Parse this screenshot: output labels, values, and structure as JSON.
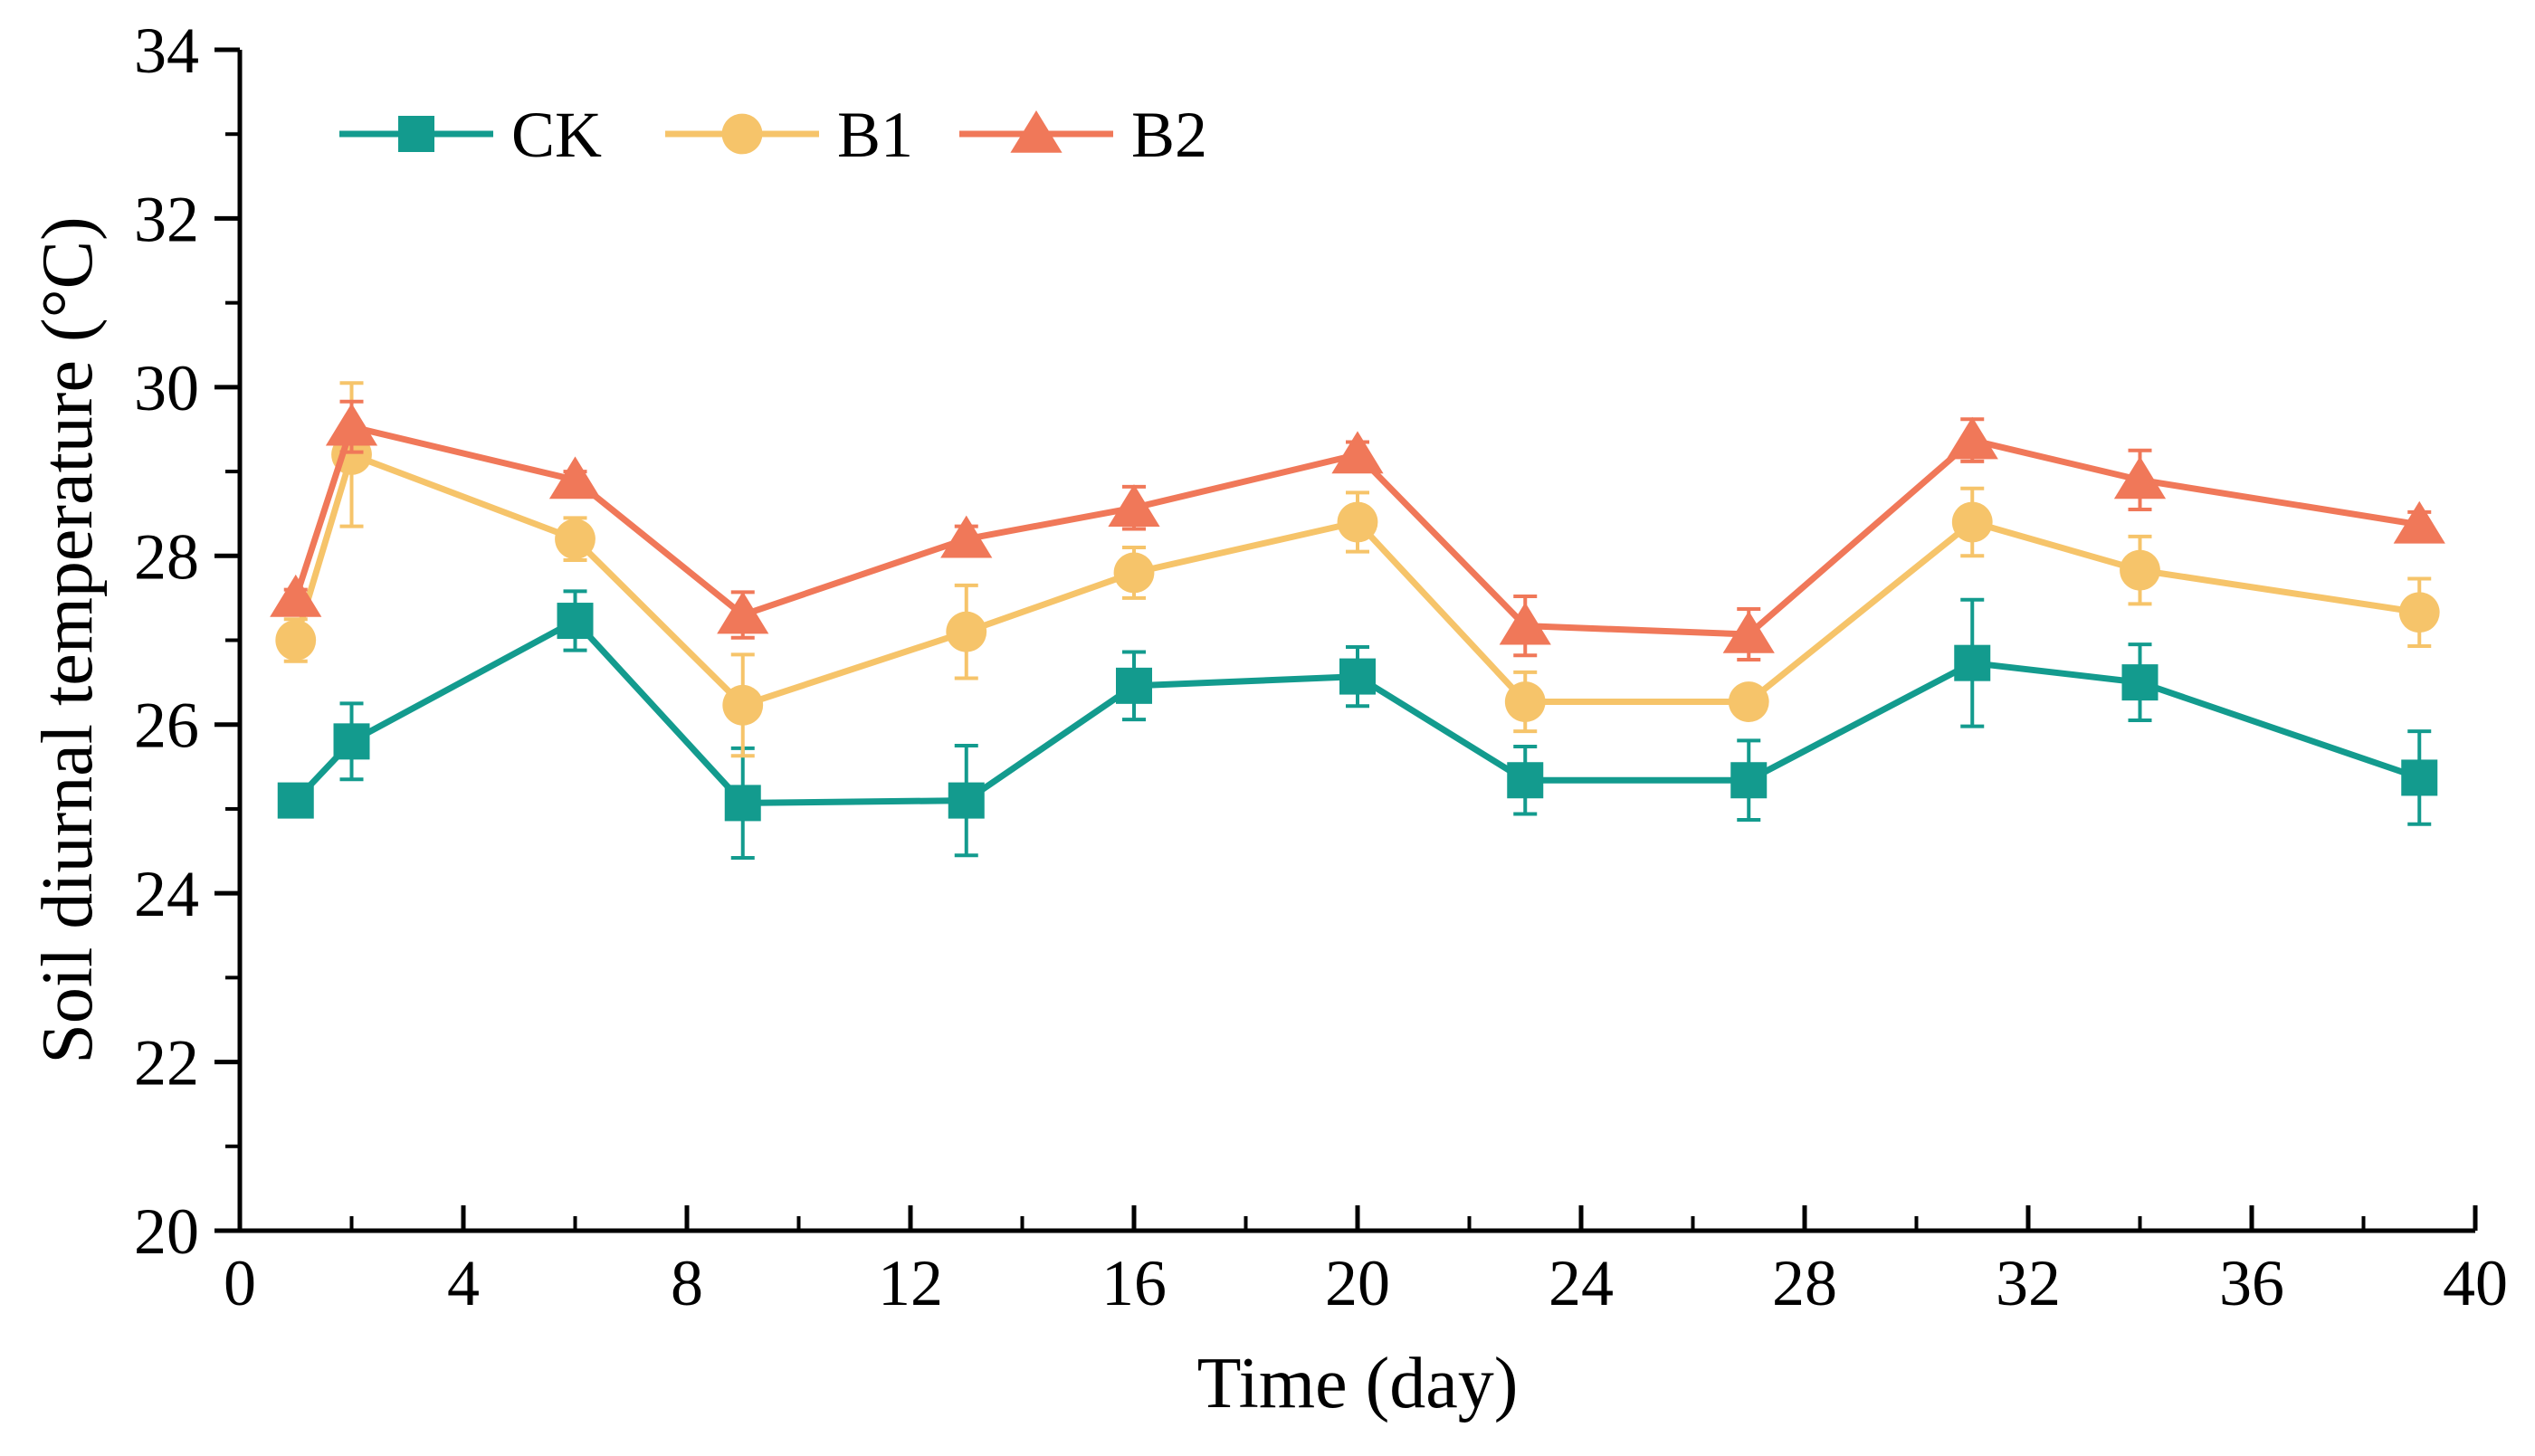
{
  "chart_data": {
    "type": "line",
    "title": "",
    "xlabel": "Time (day)",
    "ylabel": "Soil diurnal temperature (°C)",
    "xlim": [
      0,
      40
    ],
    "ylim": [
      20,
      34
    ],
    "x_ticks": [
      0,
      4,
      8,
      12,
      16,
      20,
      24,
      28,
      32,
      36,
      40
    ],
    "x_tick_labels": [
      "0",
      "4",
      "8",
      "12",
      "16",
      "20",
      "24",
      "28",
      "32",
      "36",
      "40"
    ],
    "y_ticks": [
      20,
      22,
      24,
      26,
      28,
      30,
      32,
      34
    ],
    "y_tick_labels": [
      "20",
      "22",
      "24",
      "26",
      "28",
      "30",
      "32",
      "34"
    ],
    "grid": false,
    "legend_position": "top-left",
    "x": [
      1,
      2,
      6,
      9,
      13,
      16,
      20,
      23,
      27,
      31,
      34,
      39
    ],
    "series": [
      {
        "name": "CK",
        "color": "#139B8E",
        "marker": "square",
        "values": [
          25.1,
          25.8,
          27.23,
          25.07,
          25.1,
          26.46,
          26.57,
          25.34,
          25.34,
          26.73,
          26.5,
          25.37
        ],
        "errors": [
          0.12,
          0.45,
          0.35,
          0.65,
          0.65,
          0.4,
          0.35,
          0.4,
          0.47,
          0.75,
          0.45,
          0.55
        ]
      },
      {
        "name": "B1",
        "color": "#F6C46A",
        "marker": "circle",
        "values": [
          27.0,
          29.2,
          28.2,
          26.23,
          27.1,
          27.8,
          28.4,
          26.27,
          26.27,
          28.4,
          27.83,
          27.33
        ],
        "errors": [
          0.25,
          0.85,
          0.25,
          0.6,
          0.55,
          0.3,
          0.35,
          0.35,
          0.0,
          0.4,
          0.4,
          0.4
        ]
      },
      {
        "name": "B2",
        "color": "#F07859",
        "marker": "triangle",
        "values": [
          27.5,
          29.53,
          28.9,
          27.3,
          28.2,
          28.57,
          29.2,
          27.17,
          27.07,
          29.37,
          28.9,
          28.37
        ],
        "errors": [
          0.1,
          0.3,
          0.1,
          0.27,
          0.15,
          0.25,
          0.15,
          0.35,
          0.3,
          0.25,
          0.35,
          0.15
        ]
      }
    ]
  }
}
